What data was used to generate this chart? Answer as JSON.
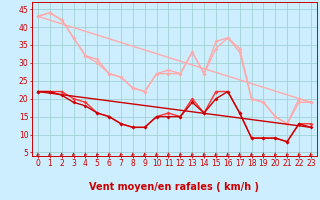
{
  "xlabel": "Vent moyen/en rafales ( km/h )",
  "background_color": "#cceeff",
  "grid_color": "#99cccc",
  "x_ticks": [
    0,
    1,
    2,
    3,
    4,
    5,
    6,
    7,
    8,
    9,
    10,
    11,
    12,
    13,
    14,
    15,
    16,
    17,
    18,
    19,
    20,
    21,
    22,
    23
  ],
  "y_ticks": [
    5,
    10,
    15,
    20,
    25,
    30,
    35,
    40,
    45
  ],
  "xlim": [
    -0.5,
    23.5
  ],
  "ylim": [
    4,
    47
  ],
  "series": [
    {
      "color": "#ffaaaa",
      "linewidth": 1.0,
      "marker": "D",
      "markersize": 2.0,
      "x": [
        0,
        1,
        2,
        3,
        4,
        5,
        6,
        7,
        8,
        9,
        10,
        11,
        12,
        13,
        14,
        15,
        16,
        17,
        18,
        19,
        20,
        21,
        22,
        23
      ],
      "y": [
        43,
        44,
        42,
        37,
        32,
        31,
        27,
        26,
        23,
        22,
        27,
        28,
        27,
        33,
        27,
        36,
        37,
        34,
        20,
        19,
        15,
        13,
        20,
        19
      ]
    },
    {
      "color": "#ffaaaa",
      "linewidth": 1.0,
      "marker": "D",
      "markersize": 2.0,
      "x": [
        0,
        1,
        2,
        3,
        4,
        5,
        6,
        7,
        8,
        9,
        10,
        11,
        12,
        13,
        14,
        15,
        16,
        17,
        18,
        19,
        20,
        21,
        22,
        23
      ],
      "y": [
        43,
        44,
        42,
        37,
        32,
        30,
        27,
        26,
        23,
        22,
        27,
        27,
        27,
        33,
        27,
        34,
        37,
        33,
        20,
        19,
        15,
        13,
        19,
        19
      ]
    },
    {
      "color": "#ffaaaa",
      "linewidth": 1.0,
      "marker": null,
      "markersize": 0,
      "x": [
        0,
        23
      ],
      "y": [
        43,
        19
      ]
    },
    {
      "color": "#ff3333",
      "linewidth": 1.0,
      "marker": "D",
      "markersize": 2.0,
      "x": [
        0,
        1,
        2,
        3,
        4,
        5,
        6,
        7,
        8,
        9,
        10,
        11,
        12,
        13,
        14,
        15,
        16,
        17,
        18,
        19,
        20,
        21,
        22,
        23
      ],
      "y": [
        22,
        22,
        22,
        20,
        19,
        16,
        15,
        13,
        12,
        12,
        15,
        16,
        15,
        20,
        16,
        22,
        22,
        16,
        9,
        9,
        9,
        8,
        13,
        13
      ]
    },
    {
      "color": "#cc0000",
      "linewidth": 1.0,
      "marker": "D",
      "markersize": 2.0,
      "x": [
        0,
        1,
        2,
        3,
        4,
        5,
        6,
        7,
        8,
        9,
        10,
        11,
        12,
        13,
        14,
        15,
        16,
        17,
        18,
        19,
        20,
        21,
        22,
        23
      ],
      "y": [
        22,
        22,
        21,
        19,
        18,
        16,
        15,
        13,
        12,
        12,
        15,
        15,
        15,
        19,
        16,
        20,
        22,
        16,
        9,
        9,
        9,
        8,
        13,
        12
      ]
    },
    {
      "color": "#cc0000",
      "linewidth": 1.0,
      "marker": null,
      "markersize": 0,
      "x": [
        0,
        23
      ],
      "y": [
        22,
        12
      ]
    }
  ],
  "arrow_color": "#cc0000",
  "xlabel_color": "#cc0000",
  "xlabel_fontsize": 7,
  "tick_fontsize": 5.5,
  "tick_color": "#cc0000"
}
